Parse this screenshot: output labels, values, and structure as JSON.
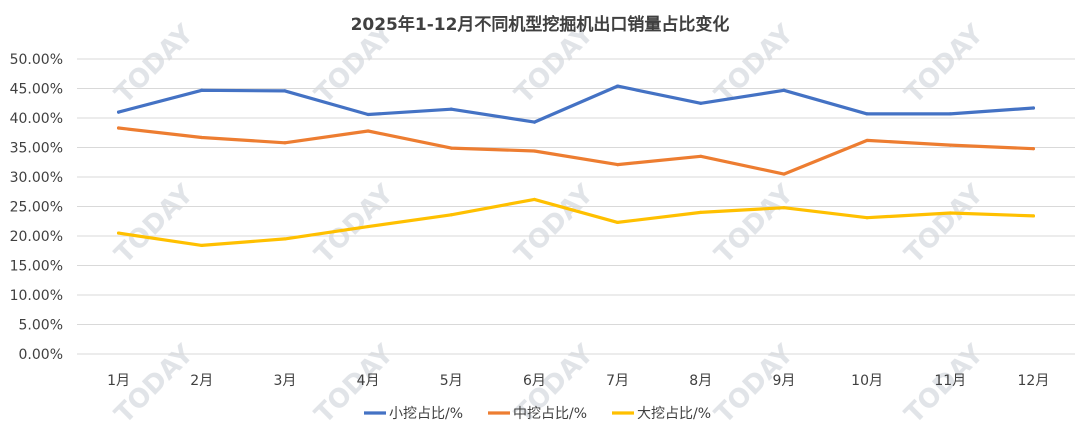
{
  "chart_data": {
    "type": "line",
    "title": "2025年1-12月不同机型挖掘机出口销量占比变化",
    "xlabel": "",
    "ylabel": "",
    "categories": [
      "1月",
      "2月",
      "3月",
      "4月",
      "5月",
      "6月",
      "7月",
      "8月",
      "9月",
      "10月",
      "11月",
      "12月"
    ],
    "ylim": [
      0,
      50
    ],
    "yticks": [
      "0.00%",
      "5.00%",
      "10.00%",
      "15.00%",
      "20.00%",
      "25.00%",
      "30.00%",
      "35.00%",
      "40.00%",
      "45.00%",
      "50.00%"
    ],
    "grid": true,
    "legend_position": "bottom",
    "series": [
      {
        "name": "小挖占比/%",
        "color": "#4472c4",
        "values": [
          41.0,
          44.7,
          44.6,
          40.6,
          41.5,
          39.3,
          45.4,
          42.5,
          44.7,
          40.7,
          40.7,
          41.7
        ]
      },
      {
        "name": "中挖占比/%",
        "color": "#ed7d31",
        "values": [
          38.3,
          36.7,
          35.8,
          37.8,
          34.9,
          34.4,
          32.1,
          33.5,
          30.5,
          36.2,
          35.4,
          34.8
        ]
      },
      {
        "name": "大挖占比/%",
        "color": "#ffc000",
        "values": [
          20.5,
          18.4,
          19.5,
          21.6,
          23.6,
          26.2,
          22.3,
          24.0,
          24.8,
          23.1,
          23.9,
          23.4
        ]
      }
    ]
  },
  "watermark": "TODAY"
}
